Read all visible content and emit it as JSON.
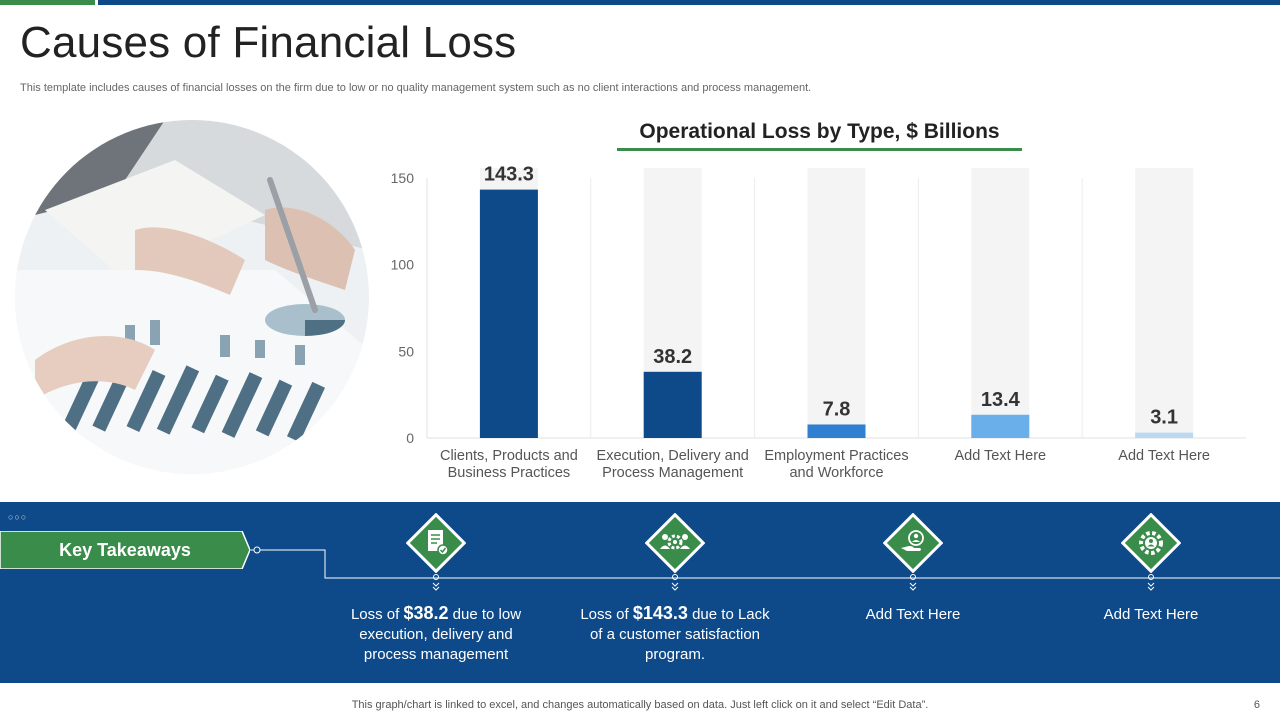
{
  "page": {
    "title": "Causes of Financial Loss",
    "subtitle": "This template includes causes of financial losses on the firm due to  low or no quality management system such as no client interactions and process management.",
    "footer": "This graph/chart is linked to excel,  and changes automatically based on data. Just left click on it and select “Edit Data”.",
    "page_number": "6"
  },
  "chart_data": {
    "type": "bar",
    "title": "Operational  Loss by Type, $ Billions",
    "categories": [
      [
        "Clients, Products and",
        "Business Practices"
      ],
      [
        "Execution, Delivery and",
        "Process Management"
      ],
      [
        "Employment Practices",
        "and Workforce"
      ],
      [
        "Add Text Here"
      ],
      [
        "Add Text Here"
      ]
    ],
    "values": [
      143.3,
      38.2,
      7.8,
      13.4,
      3.1
    ],
    "value_labels": [
      "143.3",
      "38.2",
      "7.8",
      "13.4",
      "3.1"
    ],
    "bar_colors": [
      "#0e4a8a",
      "#0e4a8a",
      "#2f80d0",
      "#6aaeea",
      "#bcd9f4"
    ],
    "ylim": [
      0,
      150
    ],
    "yticks": [
      "0",
      "50",
      "100",
      "150"
    ],
    "grid": true,
    "xlabel": "",
    "ylabel": ""
  },
  "takeaways": {
    "label": "Key Takeaways",
    "dots": "○○○",
    "items": [
      {
        "icon": "document-check-icon",
        "pre": "Loss of ",
        "value": "$38.2",
        "post": " due to low execution, delivery and process management"
      },
      {
        "icon": "team-gear-icon",
        "pre": "Loss of ",
        "value": "$143.3",
        "post": " due to Lack of a customer satisfaction program."
      },
      {
        "icon": "person-hand-icon",
        "pre": "",
        "value": "",
        "post": "Add Text Here"
      },
      {
        "icon": "gear-people-icon",
        "pre": "",
        "value": "",
        "post": "Add Text Here"
      }
    ]
  },
  "colors": {
    "brand_blue": "#0e4a8a",
    "brand_green": "#3a8c4a"
  }
}
